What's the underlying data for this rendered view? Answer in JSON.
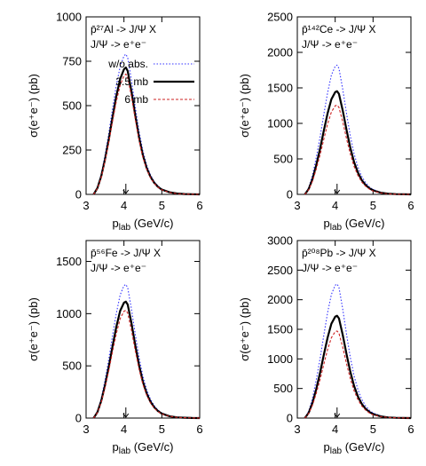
{
  "chart_data": [
    {
      "type": "line",
      "reaction_main": "p̄²⁷Al -> J/Ψ X",
      "decay": "J/Ψ -> e⁺e⁻",
      "xlabel": "p_lab (GeV/c)",
      "ylabel": "σ(e⁺e⁻) (pb)",
      "xlim": [
        3,
        6
      ],
      "ylim": [
        0,
        1000
      ],
      "xticks": [
        3,
        4,
        5,
        6
      ],
      "yticks": [
        0,
        250,
        500,
        750,
        1000
      ],
      "arrow_x": 4.05,
      "legend": "top-right",
      "x": [
        3.2,
        3.3,
        3.4,
        3.5,
        3.6,
        3.7,
        3.8,
        3.9,
        4.0,
        4.05,
        4.1,
        4.2,
        4.3,
        4.4,
        4.5,
        4.6,
        4.7,
        4.8,
        4.9,
        5.0,
        5.2,
        5.4,
        5.6,
        5.8,
        6.0
      ],
      "series": [
        {
          "name": "w/o abs.",
          "color": "#3333ff",
          "style": "dotted",
          "values": [
            0,
            40,
            115,
            220,
            345,
            485,
            615,
            720,
            780,
            790,
            770,
            640,
            490,
            355,
            245,
            165,
            110,
            72,
            47,
            30,
            13,
            5,
            2,
            1,
            0
          ]
        },
        {
          "name": "3.5 mb",
          "color": "#000000",
          "style": "solid",
          "values": [
            0,
            36,
            103,
            197,
            310,
            437,
            555,
            650,
            705,
            715,
            695,
            578,
            442,
            320,
            220,
            148,
            99,
            65,
            42,
            27,
            12,
            5,
            2,
            1,
            0
          ]
        },
        {
          "name": "6 mb",
          "color": "#cc2222",
          "style": "dashed",
          "values": [
            0,
            34,
            97,
            186,
            293,
            413,
            525,
            615,
            668,
            678,
            660,
            548,
            420,
            303,
            208,
            140,
            94,
            62,
            40,
            26,
            11,
            4,
            2,
            1,
            0
          ]
        }
      ]
    },
    {
      "type": "line",
      "reaction_main": "p̄¹⁴²Ce -> J/Ψ X",
      "decay": "J/Ψ -> e⁺e⁻",
      "xlabel": "p_lab (GeV/c)",
      "ylabel": "σ(e⁺e⁻) (pb)",
      "xlim": [
        3,
        6
      ],
      "ylim": [
        0,
        2500
      ],
      "xticks": [
        3,
        4,
        5,
        6
      ],
      "yticks": [
        0,
        500,
        1000,
        1500,
        2000,
        2500
      ],
      "arrow_x": 4.05,
      "x": [
        3.2,
        3.3,
        3.4,
        3.5,
        3.6,
        3.7,
        3.8,
        3.9,
        4.0,
        4.05,
        4.1,
        4.2,
        4.3,
        4.4,
        4.5,
        4.6,
        4.7,
        4.8,
        4.9,
        5.0,
        5.2,
        5.4,
        5.6,
        5.8,
        6.0
      ],
      "series": [
        {
          "name": "w/o abs.",
          "color": "#3333ff",
          "style": "dotted",
          "values": [
            0,
            95,
            270,
            515,
            805,
            1130,
            1430,
            1680,
            1805,
            1820,
            1775,
            1480,
            1135,
            825,
            570,
            385,
            255,
            168,
            108,
            70,
            30,
            12,
            5,
            2,
            0
          ]
        },
        {
          "name": "3.5 mb",
          "color": "#000000",
          "style": "solid",
          "values": [
            0,
            75,
            215,
            410,
            640,
            900,
            1140,
            1340,
            1440,
            1452,
            1415,
            1180,
            905,
            658,
            455,
            307,
            203,
            134,
            86,
            56,
            24,
            10,
            4,
            2,
            0
          ]
        },
        {
          "name": "6 mb",
          "color": "#cc2222",
          "style": "dashed",
          "values": [
            0,
            65,
            186,
            355,
            555,
            780,
            990,
            1160,
            1248,
            1258,
            1226,
            1022,
            784,
            570,
            394,
            266,
            176,
            116,
            75,
            48,
            21,
            8,
            3,
            1,
            0
          ]
        }
      ]
    },
    {
      "type": "line",
      "reaction_main": "p̄⁵⁶Fe -> J/Ψ X",
      "decay": "J/Ψ -> e⁺e⁻",
      "xlabel": "p_lab (GeV/c)",
      "ylabel": "σ(e⁺e⁻) (pb)",
      "xlim": [
        3,
        6
      ],
      "ylim": [
        0,
        1700
      ],
      "xticks": [
        3,
        4,
        5,
        6
      ],
      "yticks": [
        0,
        500,
        1000,
        1500
      ],
      "arrow_x": 4.05,
      "x": [
        3.2,
        3.3,
        3.4,
        3.5,
        3.6,
        3.7,
        3.8,
        3.9,
        4.0,
        4.05,
        4.1,
        4.2,
        4.3,
        4.4,
        4.5,
        4.6,
        4.7,
        4.8,
        4.9,
        5.0,
        5.2,
        5.4,
        5.6,
        5.8,
        6.0
      ],
      "series": [
        {
          "name": "w/o abs.",
          "color": "#3333ff",
          "style": "dotted",
          "values": [
            0,
            66,
            190,
            360,
            565,
            795,
            1005,
            1180,
            1268,
            1280,
            1248,
            1040,
            797,
            580,
            400,
            270,
            180,
            118,
            76,
            49,
            21,
            8,
            3,
            1,
            0
          ]
        },
        {
          "name": "3.5 mb",
          "color": "#000000",
          "style": "solid",
          "values": [
            0,
            57,
            165,
            314,
            492,
            692,
            875,
            1028,
            1105,
            1115,
            1087,
            906,
            694,
            505,
            348,
            235,
            157,
            103,
            66,
            43,
            18,
            7,
            3,
            1,
            0
          ]
        },
        {
          "name": "6 mb",
          "color": "#cc2222",
          "style": "dashed",
          "values": [
            0,
            53,
            153,
            290,
            455,
            640,
            810,
            952,
            1023,
            1032,
            1006,
            838,
            642,
            467,
            322,
            218,
            145,
            95,
            61,
            40,
            17,
            7,
            3,
            1,
            0
          ]
        }
      ]
    },
    {
      "type": "line",
      "reaction_main": "p̄²⁰⁸Pb -> J/Ψ X",
      "decay": "J/Ψ -> e⁺e⁻",
      "xlabel": "p_lab (GeV/c)",
      "ylabel": "σ(e⁺e⁻) (pb)",
      "xlim": [
        3,
        6
      ],
      "ylim": [
        0,
        3000
      ],
      "xticks": [
        3,
        4,
        5,
        6
      ],
      "yticks": [
        0,
        500,
        1000,
        1500,
        2000,
        2500,
        3000
      ],
      "arrow_x": 4.05,
      "x": [
        3.2,
        3.3,
        3.4,
        3.5,
        3.6,
        3.7,
        3.8,
        3.9,
        4.0,
        4.05,
        4.1,
        4.2,
        4.3,
        4.4,
        4.5,
        4.6,
        4.7,
        4.8,
        4.9,
        5.0,
        5.2,
        5.4,
        5.6,
        5.8,
        6.0
      ],
      "series": [
        {
          "name": "w/o abs.",
          "color": "#3333ff",
          "style": "dotted",
          "values": [
            0,
            117,
            335,
            640,
            1000,
            1405,
            1780,
            2090,
            2245,
            2265,
            2210,
            1840,
            1412,
            1027,
            710,
            480,
            318,
            209,
            134,
            87,
            37,
            15,
            6,
            2,
            0
          ]
        },
        {
          "name": "3.5 mb",
          "color": "#000000",
          "style": "solid",
          "values": [
            0,
            89,
            256,
            488,
            763,
            1072,
            1358,
            1595,
            1713,
            1728,
            1686,
            1404,
            1077,
            784,
            541,
            366,
            243,
            159,
            103,
            66,
            28,
            11,
            4,
            2,
            0
          ]
        },
        {
          "name": "6 mb",
          "color": "#cc2222",
          "style": "dashed",
          "values": [
            0,
            76,
            218,
            416,
            650,
            913,
            1157,
            1359,
            1460,
            1472,
            1436,
            1196,
            918,
            668,
            461,
            312,
            207,
            136,
            87,
            56,
            24,
            10,
            4,
            1,
            0
          ]
        }
      ]
    }
  ]
}
